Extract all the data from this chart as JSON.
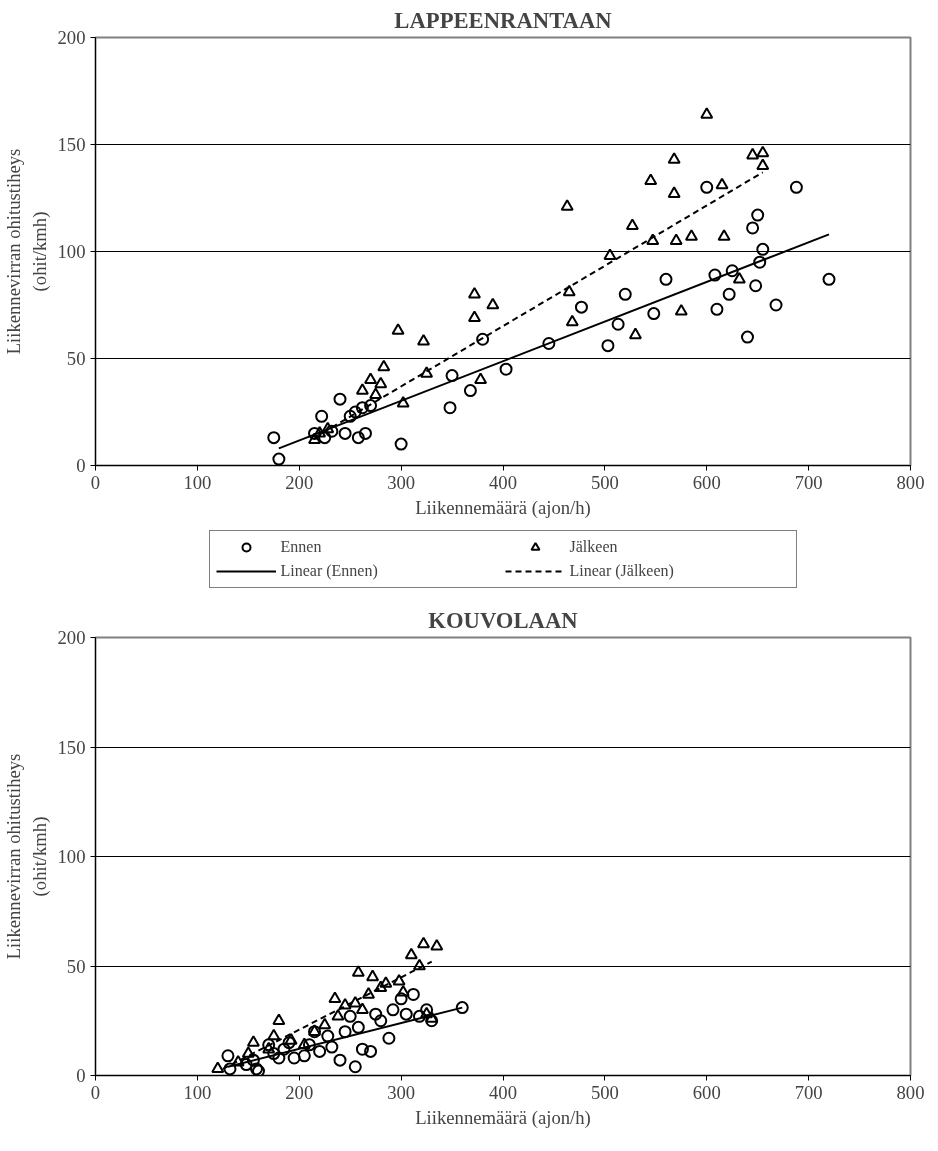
{
  "chart_data": [
    {
      "type": "scatter",
      "title": "LAPPEENRANTAAN",
      "xlabel": "Liikennemäärä (ajon/h)",
      "ylabel": "Liikennevirran ohitustiheys\n(ohit/kmh)",
      "xlim": [
        0,
        800
      ],
      "ylim": [
        0,
        200
      ],
      "xticks": [
        0,
        100,
        200,
        300,
        400,
        500,
        600,
        700,
        800
      ],
      "yticks": [
        0,
        50,
        100,
        150,
        200
      ],
      "grid": "y",
      "legend": "bottom",
      "series": [
        {
          "name": "Ennen",
          "type": "scatter",
          "marker": "circle",
          "color": "#000000",
          "x": [
            175,
            180,
            222,
            240,
            215,
            225,
            232,
            245,
            250,
            255,
            258,
            262,
            265,
            270,
            300,
            350,
            348,
            368,
            380,
            403,
            445,
            477,
            503,
            513,
            520,
            548,
            560,
            600,
            608,
            610,
            622,
            625,
            640,
            645,
            648,
            650,
            652,
            655,
            668,
            688,
            720
          ],
          "values": [
            13,
            3,
            23,
            31,
            15,
            13,
            16,
            15,
            23,
            25,
            13,
            27,
            15,
            28,
            10,
            42,
            27,
            35,
            59,
            45,
            57,
            74,
            56,
            66,
            80,
            71,
            87,
            130,
            89,
            73,
            80,
            91,
            60,
            111,
            84,
            117,
            95,
            101,
            75,
            130,
            87
          ]
        },
        {
          "name": "Jälkeen",
          "type": "scatter",
          "marker": "triangle",
          "color": "#000000",
          "x": [
            215,
            220,
            228,
            262,
            270,
            275,
            280,
            283,
            297,
            302,
            322,
            325,
            372,
            372,
            378,
            390,
            463,
            465,
            468,
            505,
            527,
            530,
            545,
            547,
            568,
            568,
            570,
            575,
            585,
            600,
            615,
            617,
            632,
            645,
            655,
            655
          ],
          "values": [
            12,
            15,
            17,
            35,
            40,
            33,
            38,
            46,
            63,
            29,
            58,
            43,
            80,
            69,
            40,
            75,
            121,
            81,
            67,
            98,
            112,
            61,
            133,
            105,
            143,
            127,
            105,
            72,
            107,
            164,
            131,
            107,
            87,
            145,
            146,
            140
          ]
        },
        {
          "name": "Linear (Ennen)",
          "type": "line",
          "line_style": "solid",
          "color": "#000000",
          "x": [
            180,
            720
          ],
          "values": [
            8,
            108
          ]
        },
        {
          "name": "Linear (Jälkeen)",
          "type": "line",
          "line_style": "dashed",
          "color": "#000000",
          "x": [
            215,
            655
          ],
          "values": [
            13,
            137
          ]
        }
      ]
    },
    {
      "type": "scatter",
      "title": "KOUVOLAAN",
      "xlabel": "Liikennemäärä (ajon/h)",
      "ylabel": "Liikennevirran ohitustiheys\n(ohit/kmh)",
      "xlim": [
        0,
        800
      ],
      "ylim": [
        0,
        200
      ],
      "xticks": [
        0,
        100,
        200,
        300,
        400,
        500,
        600,
        700,
        800
      ],
      "yticks": [
        0,
        50,
        100,
        150,
        200
      ],
      "grid": "y",
      "series": [
        {
          "type": "scatter",
          "marker": "circle",
          "color": "#000000",
          "x": [
            130,
            132,
            148,
            155,
            158,
            160,
            170,
            175,
            180,
            185,
            190,
            195,
            205,
            210,
            215,
            220,
            228,
            232,
            240,
            245,
            250,
            255,
            258,
            262,
            270,
            275,
            280,
            288,
            292,
            300,
            305,
            312,
            318,
            325,
            330,
            360
          ],
          "values": [
            9,
            3,
            5,
            7,
            3,
            2,
            14,
            10,
            8,
            12,
            15,
            8,
            9,
            14,
            20,
            11,
            18,
            13,
            7,
            20,
            27,
            4,
            22,
            12,
            11,
            28,
            25,
            17,
            30,
            35,
            28,
            37,
            27,
            30,
            25,
            31
          ]
        },
        {
          "type": "scatter",
          "marker": "triangle",
          "color": "#000000",
          "x": [
            120,
            140,
            150,
            155,
            170,
            175,
            180,
            192,
            205,
            215,
            225,
            235,
            238,
            245,
            255,
            258,
            262,
            268,
            272,
            280,
            285,
            298,
            302,
            310,
            318,
            322,
            325,
            330,
            335
          ],
          "values": [
            3,
            6,
            10,
            15,
            12,
            18,
            25,
            16,
            14,
            20,
            23,
            35,
            27,
            32,
            33,
            47,
            30,
            37,
            45,
            40,
            42,
            43,
            38,
            55,
            50,
            60,
            28,
            26,
            59
          ]
        },
        {
          "type": "line",
          "line_style": "solid",
          "color": "#000000",
          "x": [
            130,
            360
          ],
          "values": [
            4,
            31
          ]
        },
        {
          "type": "line",
          "line_style": "dashed",
          "color": "#000000",
          "x": [
            125,
            330
          ],
          "values": [
            3,
            52
          ]
        }
      ]
    }
  ]
}
